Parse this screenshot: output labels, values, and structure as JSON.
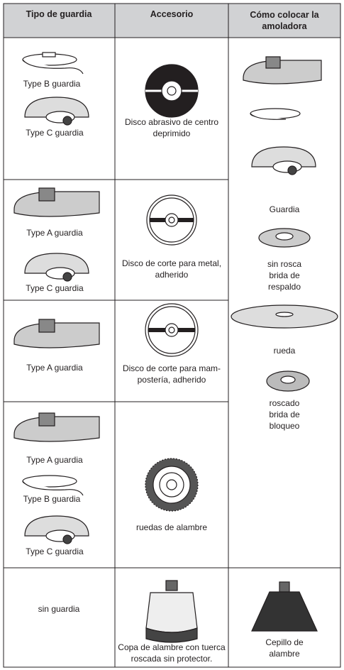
{
  "header": {
    "columns": [
      "Tipo de guardia",
      "Accesorio",
      "Cómo colocar la amoladora"
    ]
  },
  "rows": [
    {
      "guards": [
        "Type B guardia",
        "Type C guardia"
      ],
      "accessory": "Disco abrasivo de centro deprimido"
    },
    {
      "guards": [
        "Type A guardia",
        "Type C guardia"
      ],
      "accessory": "Disco de corte para metal, adherido"
    },
    {
      "guards": [
        "Type A guardia"
      ],
      "accessory": "Disco de corte para mam-\npostería, adherido"
    },
    {
      "guards": [
        "Type A guardia",
        "Type B guardia",
        "Type C guardia"
      ],
      "accessory": "ruedas de alambre"
    },
    {
      "guards": [
        "sin guardia"
      ],
      "accessory": "Copa de alambre con tuerca roscada sin protector.",
      "mounting": "Cepillo de alambre"
    }
  ],
  "mounting": [
    "Guardia",
    "sin rosca\nbrida de respaldo",
    "rueda",
    "roscado\nbrida de bloqueo"
  ]
}
